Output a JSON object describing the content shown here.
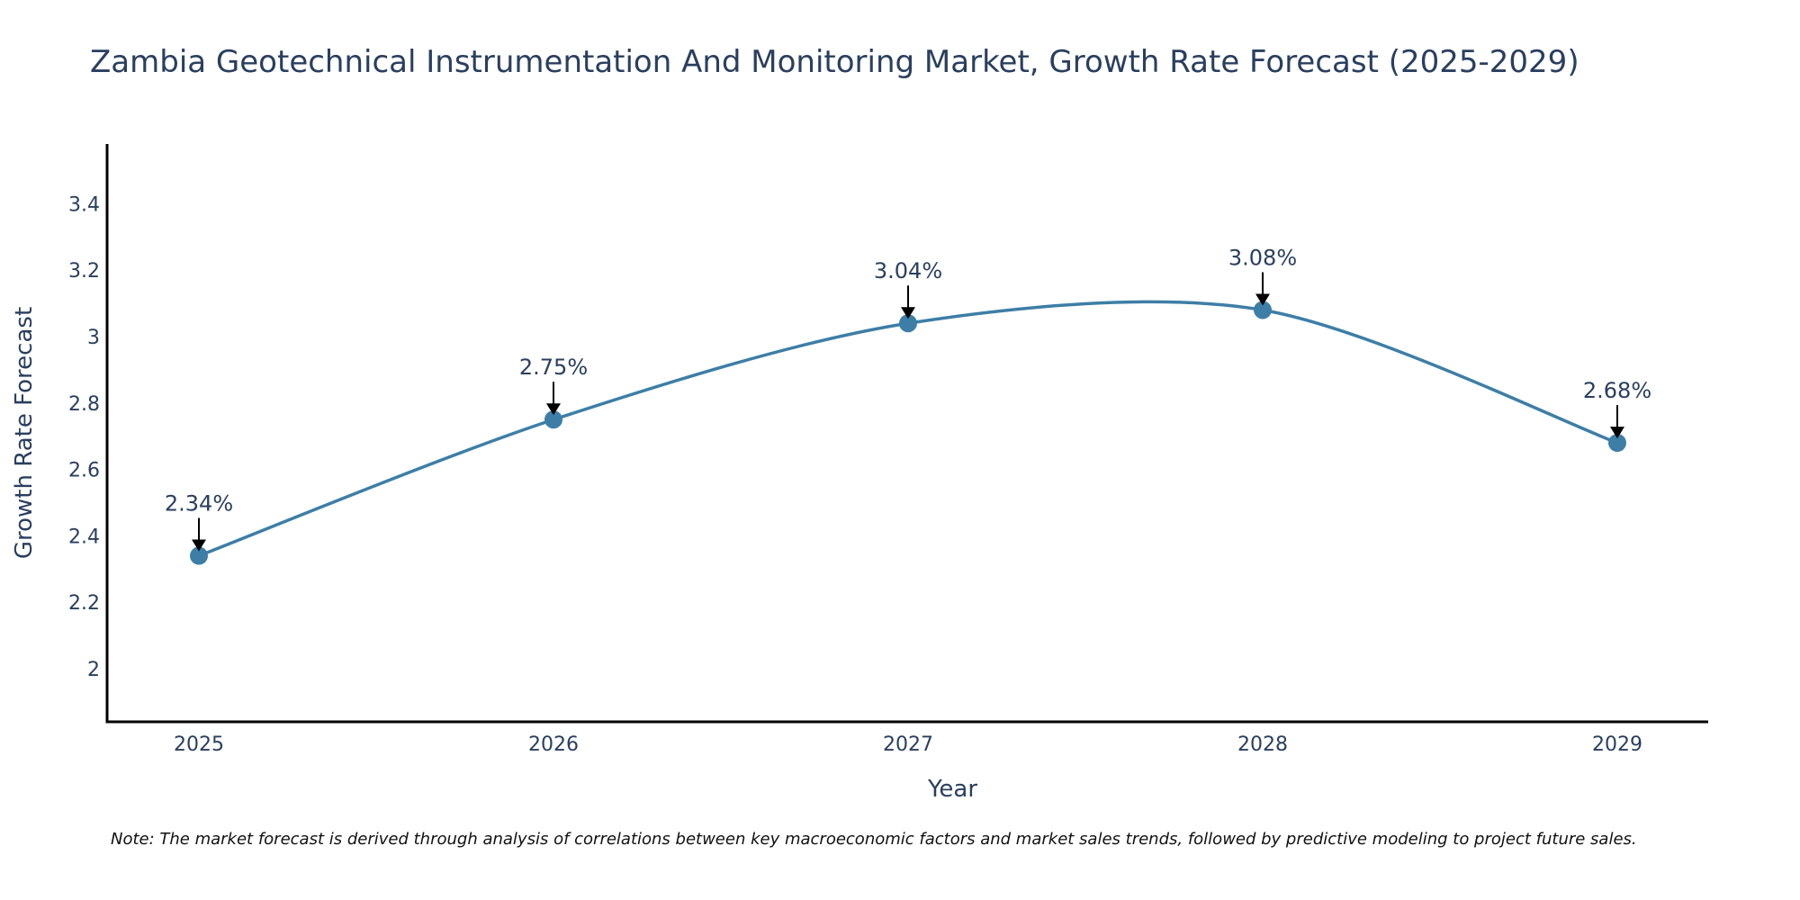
{
  "chart_data": {
    "type": "line",
    "title": "Zambia Geotechnical Instrumentation And Monitoring Market, Growth Rate Forecast (2025-2029)",
    "xlabel": "Year",
    "ylabel": "Growth Rate Forecast",
    "categories": [
      "2025",
      "2026",
      "2027",
      "2028",
      "2029"
    ],
    "series": [
      {
        "name": "Growth Rate Forecast",
        "values": [
          2.34,
          2.75,
          3.04,
          3.08,
          2.68
        ],
        "labels": [
          "2.34%",
          "2.75%",
          "3.04%",
          "3.08%",
          "2.68%"
        ],
        "color": "#3d7ea6"
      }
    ],
    "ylim": [
      1.84,
      3.58
    ],
    "yticks": [
      2,
      2.2,
      2.4,
      2.6,
      2.8,
      3,
      3.2,
      3.4
    ],
    "ytick_labels": [
      "2",
      "2.2",
      "2.4",
      "2.6",
      "2.8",
      "3",
      "3.2",
      "3.4"
    ],
    "grid": false,
    "line_shape": "spline",
    "annotation_arrows": true
  },
  "note": "Note: The market forecast is derived through analysis of correlations between key macroeconomic factors and market sales trends, followed by predictive modeling to project future sales.",
  "colors": {
    "line": "#3d7ea6",
    "marker": "#3d7ea6",
    "text": "#2a3f5f",
    "axis": "#000000"
  }
}
